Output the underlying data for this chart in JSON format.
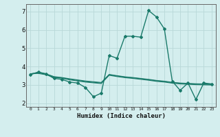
{
  "xlabel": "Humidex (Indice chaleur)",
  "background_color": "#d4eeee",
  "grid_color": "#b8d8d8",
  "line_color": "#1a7a6a",
  "xlim": [
    -0.5,
    23.5
  ],
  "ylim": [
    1.8,
    7.4
  ],
  "yticks": [
    2,
    3,
    4,
    5,
    6,
    7
  ],
  "xticks": [
    0,
    1,
    2,
    3,
    4,
    5,
    6,
    7,
    8,
    9,
    10,
    11,
    12,
    13,
    14,
    15,
    16,
    17,
    18,
    19,
    20,
    21,
    22,
    23
  ],
  "series": [
    {
      "x": [
        0,
        1,
        2,
        3,
        4,
        5,
        6,
        7,
        8,
        9,
        10,
        11,
        12,
        13,
        14,
        15,
        16,
        17,
        18,
        19,
        20,
        21,
        22,
        23
      ],
      "y": [
        3.55,
        3.7,
        3.6,
        3.35,
        3.3,
        3.15,
        3.1,
        2.85,
        2.35,
        2.55,
        4.6,
        4.45,
        5.65,
        5.65,
        5.6,
        7.05,
        6.7,
        6.05,
        3.2,
        2.7,
        3.1,
        2.2,
        3.1,
        3.05
      ],
      "marker": "D",
      "markersize": 2.0,
      "linewidth": 1.0
    },
    {
      "x": [
        0,
        1,
        2,
        3,
        4,
        5,
        6,
        7,
        8,
        9,
        10,
        11,
        12,
        13,
        14,
        15,
        16,
        17,
        18,
        19,
        20,
        21,
        22,
        23
      ],
      "y": [
        3.6,
        3.65,
        3.58,
        3.42,
        3.38,
        3.3,
        3.24,
        3.18,
        3.14,
        3.1,
        3.55,
        3.48,
        3.42,
        3.38,
        3.33,
        3.28,
        3.22,
        3.18,
        3.12,
        3.08,
        3.06,
        3.04,
        3.03,
        3.02
      ],
      "marker": null,
      "linewidth": 0.8
    },
    {
      "x": [
        0,
        1,
        2,
        3,
        4,
        5,
        6,
        7,
        8,
        9,
        10,
        11,
        12,
        13,
        14,
        15,
        16,
        17,
        18,
        19,
        20,
        21,
        22,
        23
      ],
      "y": [
        3.6,
        3.68,
        3.6,
        3.45,
        3.4,
        3.33,
        3.27,
        3.21,
        3.17,
        3.13,
        3.57,
        3.5,
        3.44,
        3.4,
        3.35,
        3.3,
        3.24,
        3.2,
        3.14,
        3.1,
        3.08,
        3.06,
        3.05,
        3.04
      ],
      "marker": null,
      "linewidth": 0.8
    },
    {
      "x": [
        0,
        1,
        2,
        3,
        4,
        5,
        6,
        7,
        8,
        9,
        10,
        11,
        12,
        13,
        14,
        15,
        16,
        17,
        18,
        19,
        20,
        21,
        22,
        23
      ],
      "y": [
        3.6,
        3.62,
        3.55,
        3.4,
        3.36,
        3.27,
        3.21,
        3.15,
        3.11,
        3.07,
        3.52,
        3.45,
        3.39,
        3.35,
        3.3,
        3.25,
        3.19,
        3.15,
        3.09,
        3.05,
        3.03,
        3.01,
        3.0,
        2.99
      ],
      "marker": null,
      "linewidth": 0.8
    }
  ]
}
